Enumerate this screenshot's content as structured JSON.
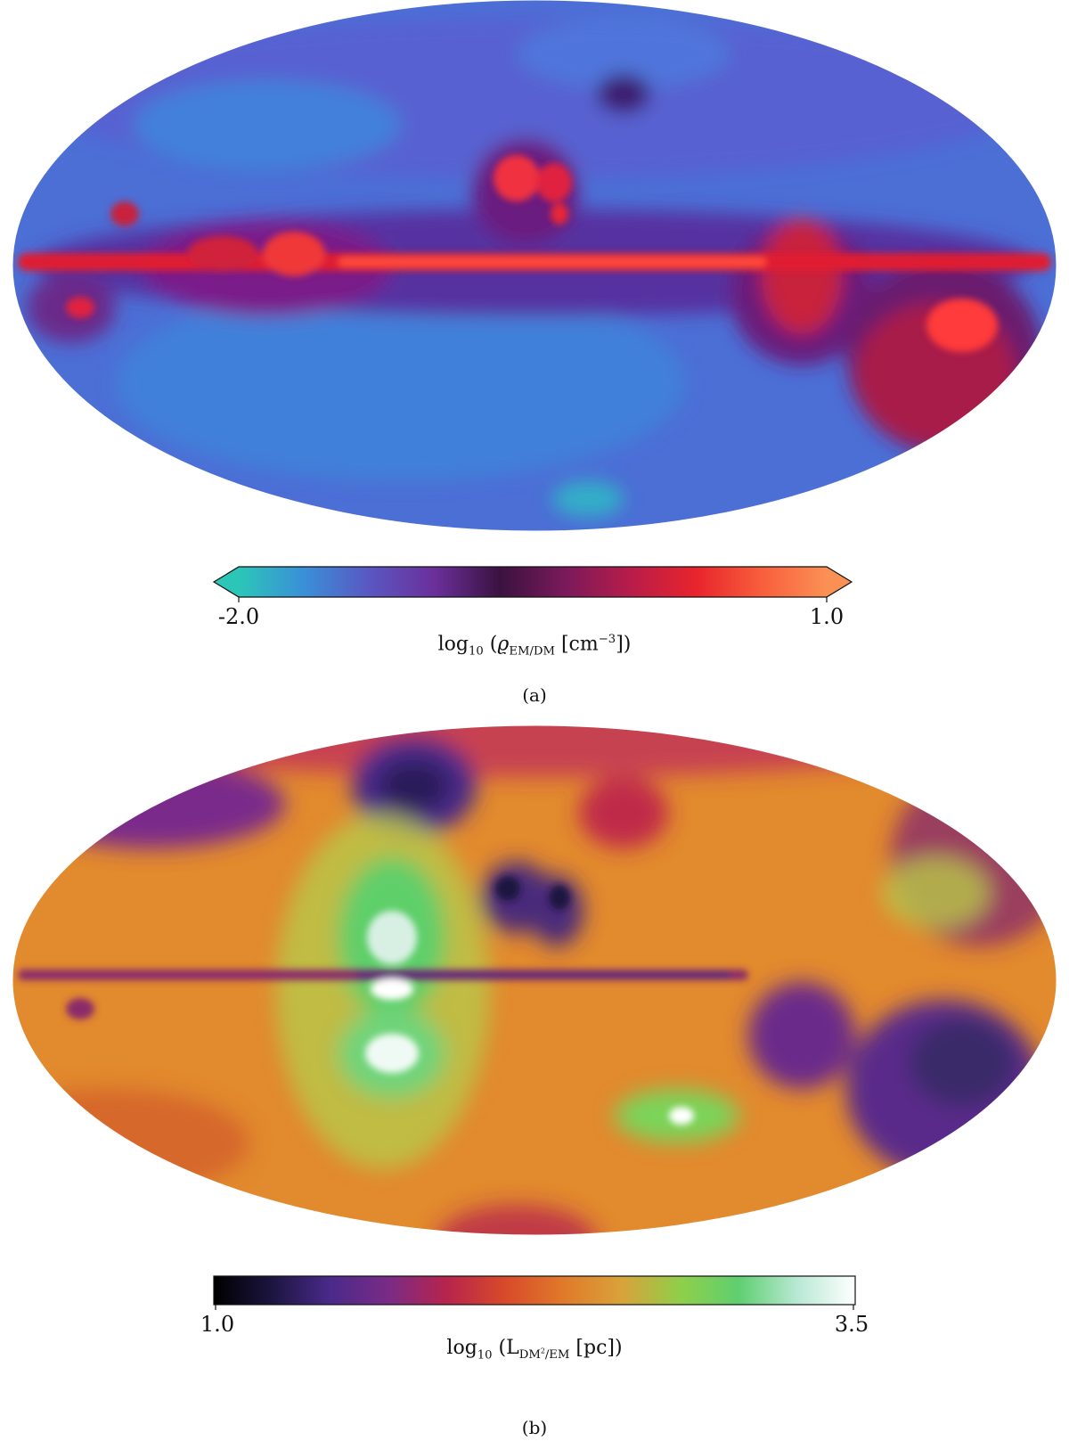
{
  "chart_data": [
    {
      "type": "heatmap",
      "projection": "mollweide",
      "panel_caption": "(a)",
      "colorbar": {
        "label": "log10 (ϱEM/DM [cm−3])",
        "label_parts": {
          "func": "log",
          "func_sub": "10",
          "symbol": "ϱ",
          "symbol_sub": "EM/DM",
          "unit": "cm",
          "unit_sup": "−3"
        },
        "ticks": [
          "-2.0",
          "1.0"
        ],
        "range": [
          -2.0,
          1.0
        ],
        "extend": "both",
        "colors": [
          "#2bc6b8",
          "#3a8fd8",
          "#5a57c2",
          "#6b2f9a",
          "#3a1240",
          "#7a1a5a",
          "#b81c4a",
          "#e8242c",
          "#f85e3c",
          "#fb9055"
        ]
      }
    },
    {
      "type": "heatmap",
      "projection": "mollweide",
      "panel_caption": "(b)",
      "colorbar": {
        "label": "log10 (LDM2/EM [pc])",
        "label_parts": {
          "func": "log",
          "func_sub": "10",
          "symbol": "L",
          "symbol_sub": "DM",
          "symbol_sub_sup": "2",
          "symbol_sub_tail": "/EM",
          "unit": "pc"
        },
        "ticks": [
          "1.0",
          "3.5"
        ],
        "range": [
          1.0,
          3.5
        ],
        "extend": "neither",
        "colors": [
          "#000000",
          "#1c1540",
          "#4a2a8a",
          "#7a2b86",
          "#b7244c",
          "#d84a2a",
          "#e07a2a",
          "#d9a23a",
          "#8fcf4a",
          "#5fcf70",
          "#b8e8d4",
          "#ffffff"
        ]
      }
    }
  ]
}
